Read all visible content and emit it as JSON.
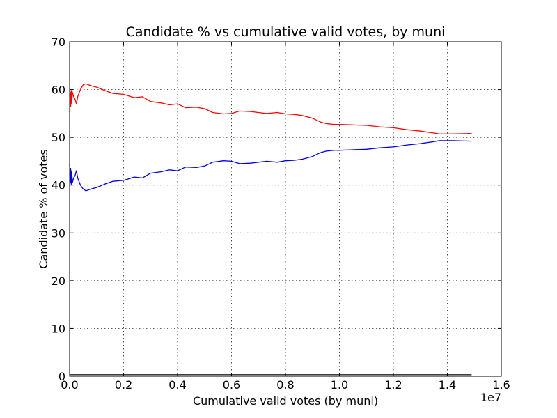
{
  "chart_data": {
    "type": "line",
    "title": "Candidate % vs cumulative valid votes, by muni",
    "xlabel": "Cumulative valid votes (by muni)",
    "ylabel": "Candidate % of votes",
    "x_offset_label": "1e7",
    "xlim": [
      0,
      1.6
    ],
    "ylim": [
      0,
      70
    ],
    "x_ticks": [
      0,
      0.2,
      0.4,
      0.6,
      0.8,
      1.0,
      1.2,
      1.4,
      1.6
    ],
    "x_tick_labels": [
      "0.0",
      "0.2",
      "0.4",
      "0.6",
      "0.8",
      "1.0",
      "1.2",
      "1.4",
      "1.6"
    ],
    "y_ticks": [
      0,
      10,
      20,
      30,
      40,
      50,
      60,
      70
    ],
    "y_tick_labels": [
      "0",
      "10",
      "20",
      "30",
      "40",
      "50",
      "60",
      "70"
    ],
    "grid": true,
    "legend": "none",
    "series": [
      {
        "color": "#ff0000",
        "x": [
          0.0,
          0.002,
          0.004,
          0.006,
          0.008,
          0.01,
          0.015,
          0.02,
          0.025,
          0.03,
          0.04,
          0.05,
          0.06,
          0.08,
          0.1,
          0.13,
          0.16,
          0.2,
          0.24,
          0.27,
          0.3,
          0.34,
          0.37,
          0.4,
          0.43,
          0.47,
          0.5,
          0.53,
          0.57,
          0.6,
          0.63,
          0.67,
          0.7,
          0.73,
          0.77,
          0.8,
          0.83,
          0.86,
          0.9,
          0.93,
          0.95,
          0.98,
          1.0,
          1.05,
          1.1,
          1.15,
          1.2,
          1.25,
          1.3,
          1.35,
          1.37,
          1.42,
          1.49
        ],
        "y": [
          55.3,
          59.5,
          56.5,
          59.8,
          57.0,
          59.5,
          58.5,
          58.0,
          57.0,
          58.5,
          60.0,
          61.0,
          61.2,
          60.8,
          60.5,
          59.8,
          59.2,
          59.0,
          58.3,
          58.5,
          57.5,
          57.2,
          56.8,
          57.0,
          56.2,
          56.3,
          56.0,
          55.2,
          54.9,
          55.0,
          55.5,
          55.4,
          55.2,
          55.0,
          55.2,
          54.9,
          54.8,
          54.6,
          54.0,
          53.2,
          52.9,
          52.7,
          52.7,
          52.6,
          52.5,
          52.2,
          52.0,
          51.6,
          51.3,
          50.9,
          50.7,
          50.7,
          50.8
        ]
      },
      {
        "color": "#0000dd",
        "x": [
          0.0,
          0.002,
          0.004,
          0.006,
          0.008,
          0.01,
          0.015,
          0.02,
          0.025,
          0.03,
          0.04,
          0.05,
          0.06,
          0.08,
          0.1,
          0.13,
          0.16,
          0.2,
          0.24,
          0.27,
          0.3,
          0.34,
          0.37,
          0.4,
          0.43,
          0.47,
          0.5,
          0.53,
          0.57,
          0.6,
          0.63,
          0.67,
          0.7,
          0.73,
          0.77,
          0.8,
          0.83,
          0.86,
          0.9,
          0.93,
          0.95,
          0.98,
          1.0,
          1.05,
          1.1,
          1.15,
          1.2,
          1.25,
          1.3,
          1.35,
          1.37,
          1.42,
          1.49
        ],
        "y": [
          44.5,
          40.5,
          43.5,
          40.2,
          43.0,
          40.5,
          41.5,
          42.0,
          43.0,
          41.5,
          40.0,
          39.2,
          38.8,
          39.2,
          39.5,
          40.2,
          40.8,
          41.0,
          41.7,
          41.5,
          42.5,
          42.8,
          43.2,
          43.0,
          43.8,
          43.7,
          44.0,
          44.8,
          45.1,
          45.0,
          44.5,
          44.6,
          44.8,
          45.0,
          44.8,
          45.1,
          45.2,
          45.4,
          46.0,
          46.8,
          47.1,
          47.3,
          47.3,
          47.4,
          47.5,
          47.8,
          48.0,
          48.4,
          48.7,
          49.1,
          49.3,
          49.3,
          49.2
        ]
      },
      {
        "color": "#000000",
        "x": [
          0.0,
          1.49
        ],
        "y": [
          0.3,
          0.3
        ]
      }
    ]
  }
}
